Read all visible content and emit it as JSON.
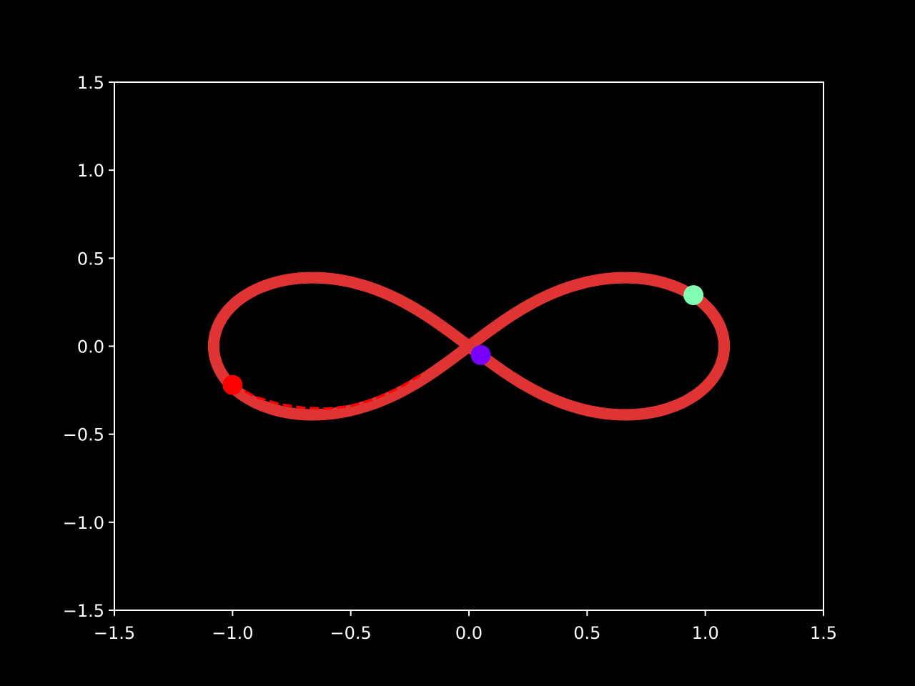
{
  "chart_data": {
    "type": "line",
    "background": "#000000",
    "axes_color": "#ffffff",
    "grid": false,
    "legend": "none",
    "xlim": [
      -1.5,
      1.5
    ],
    "ylim": [
      -1.5,
      1.5
    ],
    "xticks": [
      -1.5,
      -1.0,
      -0.5,
      0.0,
      0.5,
      1.0,
      1.5
    ],
    "yticks": [
      -1.5,
      -1.0,
      -0.5,
      0.0,
      0.5,
      1.0,
      1.5
    ],
    "xtick_labels": [
      "−1.5",
      "−1.0",
      "−0.5",
      "0.0",
      "0.5",
      "1.0",
      "1.5"
    ],
    "ytick_labels": [
      "−1.5",
      "−1.0",
      "−0.5",
      "0.0",
      "0.5",
      "1.0",
      "1.5"
    ],
    "series": [
      {
        "style": "thick-solid",
        "color": "#e03434",
        "curve": "figure-eight (lemniscate-like) orbit",
        "x": [
          0.0,
          0.13,
          0.27,
          0.4,
          0.53,
          0.65,
          0.76,
          0.86,
          0.95,
          1.02,
          1.07,
          1.08,
          1.06,
          1.01,
          0.93,
          0.83,
          0.71,
          0.58,
          0.44,
          0.3,
          0.15,
          0.0,
          -0.15,
          -0.3,
          -0.44,
          -0.58,
          -0.71,
          -0.83,
          -0.93,
          -1.01,
          -1.06,
          -1.08,
          -1.06,
          -1.01,
          -0.93,
          -0.83,
          -0.71,
          -0.58,
          -0.44,
          -0.3,
          -0.15,
          0.0
        ],
        "y": [
          0.0,
          0.12,
          0.22,
          0.3,
          0.35,
          0.37,
          0.36,
          0.33,
          0.27,
          0.19,
          0.1,
          0.0,
          -0.1,
          -0.19,
          -0.27,
          -0.33,
          -0.36,
          -0.37,
          -0.35,
          -0.3,
          -0.22,
          -0.12,
          -0.0,
          0.12,
          0.22,
          0.3,
          0.35,
          0.37,
          0.36,
          0.33,
          0.27,
          0.19,
          0.1,
          0.0,
          -0.1,
          -0.19,
          -0.27,
          -0.33,
          -0.36,
          -0.37,
          -0.35,
          -0.3
        ],
        "thickness": "band"
      },
      {
        "style": "dashed",
        "color": "#ff0000",
        "x": [
          -1.0,
          -0.9,
          -0.8,
          -0.7,
          -0.6,
          -0.5,
          -0.4,
          -0.3,
          -0.2
        ],
        "y": [
          -0.22,
          -0.29,
          -0.33,
          -0.35,
          -0.355,
          -0.34,
          -0.3,
          -0.24,
          -0.16
        ]
      }
    ],
    "markers": [
      {
        "x": -1.0,
        "y": -0.22,
        "color": "#ff0000"
      },
      {
        "x": 0.05,
        "y": -0.05,
        "color": "#7700ff"
      },
      {
        "x": 0.95,
        "y": 0.29,
        "color": "#80ffb4"
      }
    ]
  }
}
